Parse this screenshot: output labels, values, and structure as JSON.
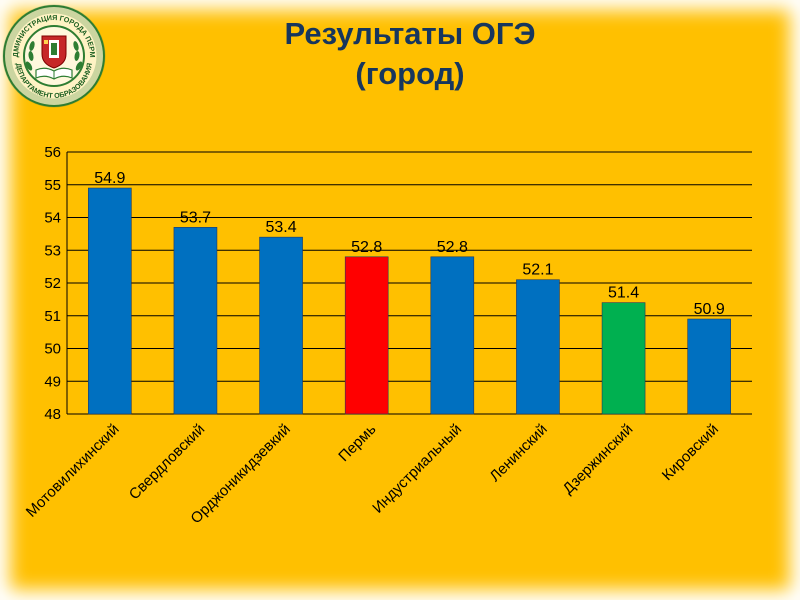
{
  "emblem": {
    "ring_top_text": "АДМИНИСТРАЦИЯ ГОРОДА ПЕРМИ",
    "ring_bottom_text": "ДЕПАРТАМЕНТ ОБРАЗОВАНИЯ",
    "colors": {
      "ring": "#2e7d32",
      "inner": "#fff8dc",
      "shield": "#c62828"
    }
  },
  "title_lines": [
    "Результаты ОГЭ",
    "(город)"
  ],
  "colors": {
    "background": "#ffc000",
    "title": "#17365d",
    "bar_default": "#0070c0"
  },
  "chart_data": {
    "type": "bar",
    "title": "Результаты ОГЭ (город)",
    "categories": [
      "Мотовилихинский",
      "Свердловский",
      "Орджоникидзевкий",
      "Пермь",
      "Индустриальный",
      "Ленинский",
      "Дзержинский",
      "Кировский"
    ],
    "values": [
      54.9,
      53.7,
      53.4,
      52.8,
      52.8,
      52.1,
      51.4,
      50.9
    ],
    "data_labels": [
      "54.9",
      "53.7",
      "53.4",
      "52.8",
      "52.8",
      "52.1",
      "51.4",
      "50.9"
    ],
    "bar_colors": [
      "#0070c0",
      "#0070c0",
      "#0070c0",
      "#ff0000",
      "#0070c0",
      "#0070c0",
      "#00b050",
      "#0070c0"
    ],
    "ylim": [
      48,
      56
    ],
    "yticks": [
      "48",
      "49",
      "50",
      "51",
      "52",
      "53",
      "54",
      "55",
      "56"
    ],
    "xlabel": "",
    "ylabel": "",
    "grid": true,
    "legend": false
  }
}
